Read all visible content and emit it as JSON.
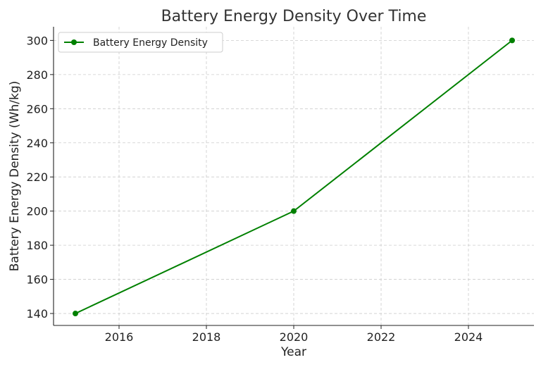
{
  "chart_data": {
    "type": "line",
    "title": "Battery Energy Density Over Time",
    "xlabel": "Year",
    "ylabel": "Battery Energy Density (Wh/kg)",
    "xlim": [
      2014.5,
      2025.5
    ],
    "ylim": [
      133,
      308
    ],
    "xticks": [
      2016,
      2018,
      2020,
      2022,
      2024
    ],
    "yticks": [
      140,
      160,
      180,
      200,
      220,
      240,
      260,
      280,
      300
    ],
    "grid": true,
    "legend_position": "top-left",
    "series": [
      {
        "name": "Battery Energy Density",
        "color": "#008000",
        "marker": "circle",
        "x": [
          2015,
          2020,
          2025
        ],
        "y": [
          140,
          200,
          300
        ]
      }
    ]
  }
}
